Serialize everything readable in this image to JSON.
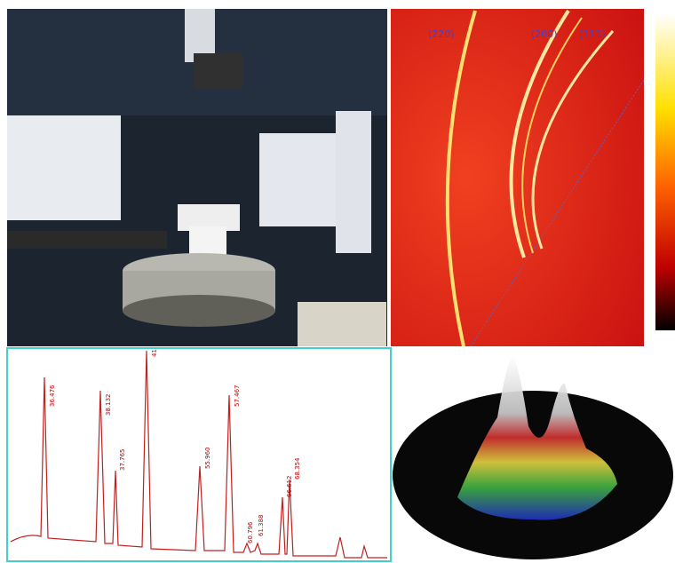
{
  "diffraction": {
    "labels": [
      "(220)",
      "(200)",
      "(111)"
    ]
  },
  "spectrum": {
    "peak_labels": [
      "36.476",
      "38.132",
      "37.765",
      "41",
      "55.960",
      "57.467",
      "60.796",
      "61.388",
      "66.612",
      "68.354"
    ]
  }
}
